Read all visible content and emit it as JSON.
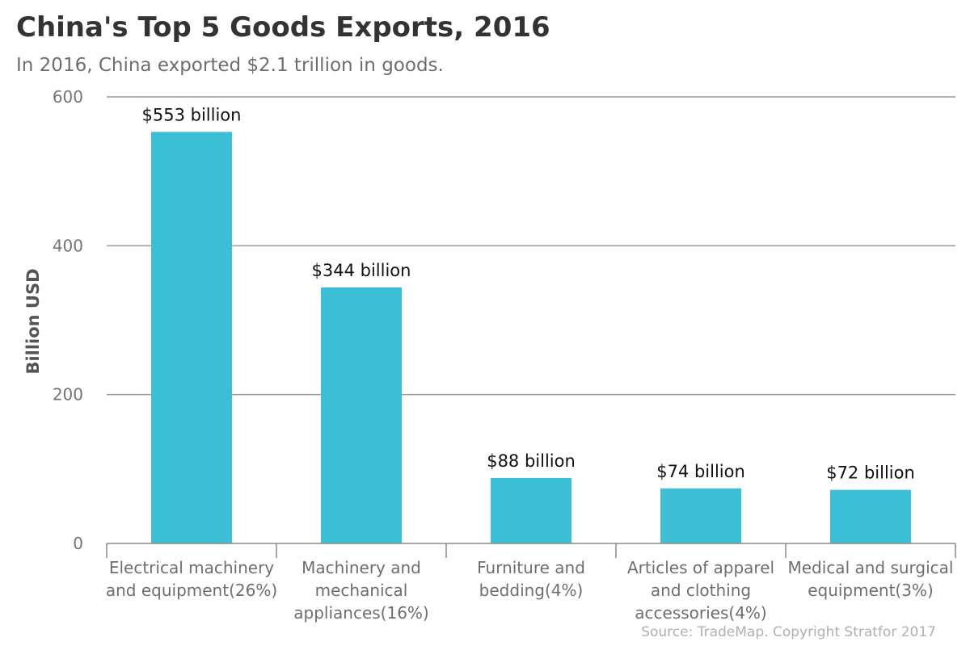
{
  "chart_data": {
    "type": "bar",
    "title": "China's Top 5 Goods Exports, 2016",
    "subtitle": "In 2016, China exported $2.1 trillion in goods.",
    "ylabel": "Billion USD",
    "xlabel": "",
    "ylim": [
      0,
      600
    ],
    "yticks": [
      0,
      200,
      400,
      600
    ],
    "grid": true,
    "bar_color": "#3cbfd6",
    "categories": [
      [
        "Electrical machinery",
        "and equipment(26%)"
      ],
      [
        "Machinery and",
        "mechanical",
        "appliances(16%)"
      ],
      [
        "Furniture and",
        "bedding(4%)"
      ],
      [
        "Articles of apparel",
        "and clothing",
        "accessories(4%)"
      ],
      [
        "Medical and surgical",
        "equipment(3%)"
      ]
    ],
    "values": [
      553,
      344,
      88,
      74,
      72
    ],
    "data_labels": [
      "$553 billion",
      "$344 billion",
      "$88 billion",
      "$74 billion",
      "$72 billion"
    ],
    "source": "Source: TradeMap. Copyright Stratfor 2017"
  }
}
